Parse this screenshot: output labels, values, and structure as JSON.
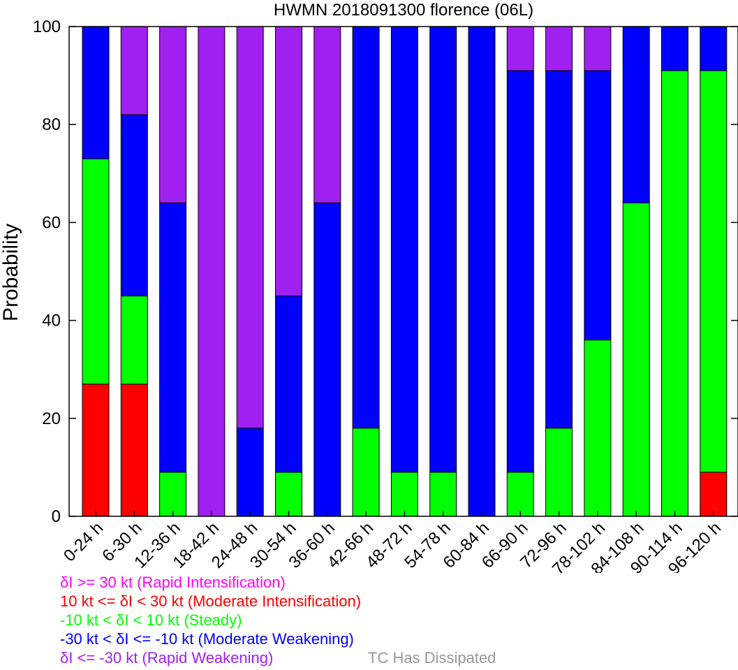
{
  "chart_data": {
    "type": "bar",
    "stacked": true,
    "title": "HWMN 2018091300 florence (06L)",
    "ylabel": "Probability",
    "xlabel": "",
    "ylim": [
      0,
      100
    ],
    "yticks": [
      0,
      20,
      40,
      60,
      80,
      100
    ],
    "grid": false,
    "categories": [
      "0-24 h",
      "6-30 h",
      "12-36 h",
      "18-42 h",
      "24-48 h",
      "30-54 h",
      "36-60 h",
      "42-66 h",
      "48-72 h",
      "54-78 h",
      "60-84 h",
      "66-90 h",
      "72-96 h",
      "78-102 h",
      "84-108 h",
      "90-114 h",
      "96-120 h"
    ],
    "series": [
      {
        "key": "rapid_intensification",
        "color": "#ff00ff",
        "values": [
          0,
          0,
          0,
          0,
          0,
          0,
          0,
          0,
          0,
          0,
          0,
          0,
          0,
          0,
          0,
          0,
          0
        ]
      },
      {
        "key": "moderate_intensification",
        "color": "#ff0000",
        "values": [
          27,
          27,
          0,
          0,
          0,
          0,
          0,
          0,
          0,
          0,
          0,
          0,
          0,
          0,
          0,
          0,
          9
        ]
      },
      {
        "key": "steady",
        "color": "#00ff00",
        "values": [
          46,
          18,
          9,
          0,
          0,
          9,
          0,
          18,
          9,
          9,
          0,
          9,
          18,
          36,
          64,
          91,
          82
        ]
      },
      {
        "key": "moderate_weakening",
        "color": "#0000ff",
        "values": [
          27,
          37,
          55,
          0,
          18,
          36,
          64,
          82,
          91,
          91,
          100,
          82,
          73,
          55,
          36,
          9,
          9
        ]
      },
      {
        "key": "rapid_weakening",
        "color": "#a020f0",
        "values": [
          0,
          18,
          36,
          100,
          82,
          55,
          36,
          0,
          0,
          0,
          0,
          9,
          9,
          9,
          0,
          0,
          0
        ]
      }
    ]
  },
  "legend": {
    "rapid_intensification": {
      "label": "δI >= 30 kt (Rapid Intensification)",
      "color": "#ff00ff"
    },
    "moderate_intensification": {
      "label": "10 kt <= δI < 30 kt (Moderate Intensification)",
      "color": "#ff0000"
    },
    "steady": {
      "label": "-10 kt < δI < 10 kt (Steady)",
      "color": "#00ff00"
    },
    "moderate_weakening": {
      "label": "-30 kt < δI <= -10 kt (Moderate Weakening)",
      "color": "#0000ff"
    },
    "rapid_weakening": {
      "label": "δI <= -30 kt (Rapid Weakening)",
      "color": "#a020f0"
    },
    "dissipated": {
      "label": "TC Has Dissipated",
      "color": "#999999"
    }
  }
}
